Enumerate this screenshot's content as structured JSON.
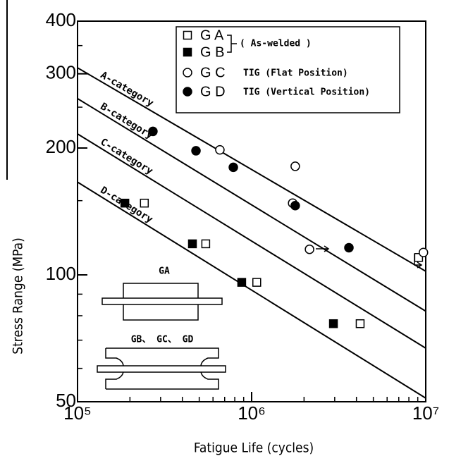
{
  "chart_data": {
    "type": "scatter",
    "xlabel": "Fatigue Life (cycles)",
    "ylabel": "Stress Range (MPa)",
    "xlog": true,
    "ylog": true,
    "xlim": [
      100000,
      10000000
    ],
    "ylim": [
      50,
      400
    ],
    "xticks": [
      {
        "value": 100000,
        "label": "10⁵"
      },
      {
        "value": 1000000,
        "label": "10⁶"
      },
      {
        "value": 10000000,
        "label": "10⁷"
      }
    ],
    "xminor": [
      200000,
      300000,
      400000,
      500000,
      600000,
      700000,
      800000,
      900000,
      2000000,
      3000000,
      4000000,
      5000000,
      6000000,
      7000000,
      8000000,
      9000000
    ],
    "yticks": [
      50,
      100,
      200,
      300,
      400
    ],
    "yminor": [
      60,
      70,
      80,
      90,
      150,
      250,
      350
    ],
    "lines": [
      {
        "name": "A-category",
        "x": [
          100000,
          10000000
        ],
        "values": [
          310,
          102
        ]
      },
      {
        "name": "B-category",
        "x": [
          100000,
          10000000
        ],
        "values": [
          262,
          82
        ]
      },
      {
        "name": "C-category",
        "x": [
          100000,
          10000000
        ],
        "values": [
          216,
          67
        ]
      },
      {
        "name": "D-category",
        "x": [
          100000,
          10000000
        ],
        "values": [
          166,
          51
        ]
      }
    ],
    "series": [
      {
        "name": "G A",
        "marker": "open-square",
        "x": [
          242000,
          545000,
          1070000,
          4200000,
          9100000
        ],
        "values": [
          148,
          118.5,
          96,
          76.6,
          110
        ]
      },
      {
        "name": "G B",
        "marker": "filled-square",
        "x": [
          187000,
          457000,
          877000,
          2950000
        ],
        "values": [
          148,
          118.5,
          96,
          76.6
        ]
      },
      {
        "name": "G C",
        "marker": "open-circle",
        "note": "TIG (Flat Position)",
        "x": [
          657000,
          1780000,
          1720000,
          2150000,
          9700000
        ],
        "values": [
          198,
          181,
          148,
          115,
          113
        ]
      },
      {
        "name": "G D",
        "marker": "filled-circle",
        "note": "TIG (Vertical Position)",
        "x": [
          271000,
          479000,
          785000,
          1780000,
          3620000
        ],
        "values": [
          219,
          197,
          180,
          146,
          116
        ]
      }
    ],
    "legend_group_note": "( As-welded )",
    "insets": [
      "GA",
      "GB、 GC、 GD"
    ]
  }
}
